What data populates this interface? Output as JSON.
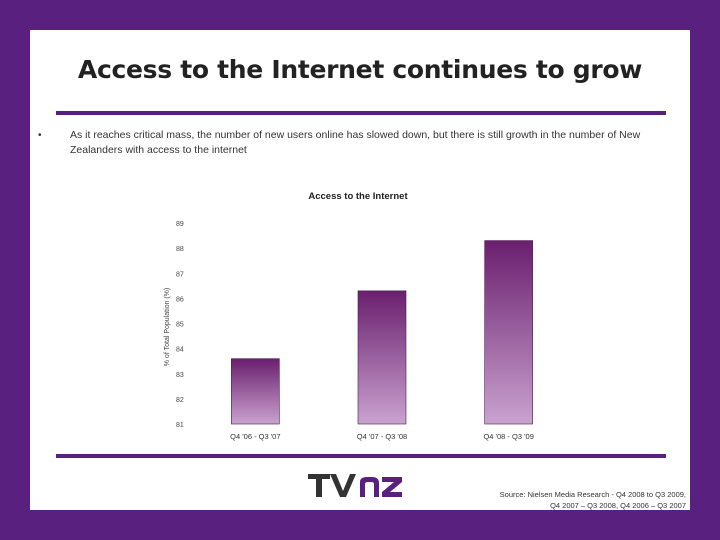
{
  "slide": {
    "title": "Access to the Internet continues to grow",
    "bullet_marker": "•",
    "bullet_text": "As it reaches critical mass, the number of new users online has slowed down, but there is still growth in the number of New Zealanders with access to the internet",
    "source_line1": "Source: Nielsen Media Research - Q4 2008 to Q3 2009,",
    "source_line2": "Q4 2007 – Q3 2008, Q4 2006 – Q3 2007",
    "logo_text": "TVNZ"
  },
  "colors": {
    "frame": "#5a2080",
    "bar_top": "#6a1f6e",
    "bar_bottom": "#c9a2cf",
    "logo_tv": "#333333",
    "logo_nz": "#5a2080"
  },
  "chart_data": {
    "type": "bar",
    "title": "Access to the Internet",
    "ylabel": "% of Total Population (%)",
    "xlabel": "",
    "categories": [
      "Q4 '06 - Q3 '07",
      "Q4 '07 - Q3 '08",
      "Q4 '08 - Q3 '09"
    ],
    "values": [
      83.6,
      86.3,
      88.3
    ],
    "ylim": [
      81,
      89
    ],
    "yticks": [
      "81",
      "82",
      "83",
      "84",
      "85",
      "86",
      "87",
      "88",
      "89"
    ],
    "grid": false,
    "legend": "none"
  }
}
